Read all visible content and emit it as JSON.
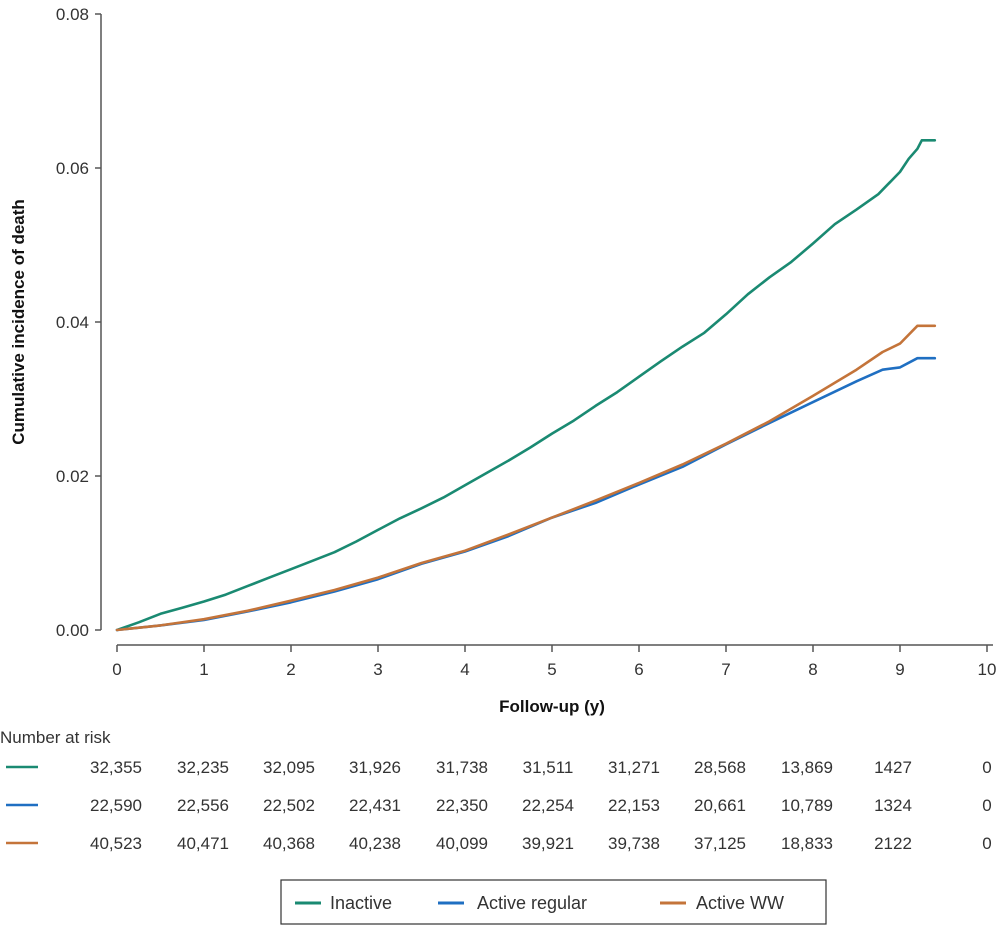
{
  "chart_data": {
    "type": "line",
    "title": "",
    "xlabel": "Follow-up (y)",
    "ylabel": "Cumulative incidence of death",
    "xlim": [
      0,
      10
    ],
    "ylim": [
      0,
      0.08
    ],
    "x_ticks": [
      "0",
      "1",
      "2",
      "3",
      "4",
      "5",
      "6",
      "7",
      "8",
      "9",
      "10"
    ],
    "y_ticks": [
      "0.00",
      "0.02",
      "0.04",
      "0.06",
      "0.08"
    ],
    "grid": false,
    "legend_position": "bottom",
    "series": [
      {
        "name": "Inactive",
        "color": "#1a8a72",
        "x": [
          0,
          0.25,
          0.5,
          0.75,
          1,
          1.25,
          1.5,
          1.75,
          2,
          2.25,
          2.5,
          2.75,
          3,
          3.25,
          3.5,
          3.75,
          4,
          4.25,
          4.5,
          4.75,
          5,
          5.25,
          5.5,
          5.75,
          6,
          6.25,
          6.5,
          6.75,
          7,
          7.25,
          7.5,
          7.75,
          8,
          8.25,
          8.5,
          8.75,
          9,
          9.1,
          9.2,
          9.25,
          9.4
        ],
        "y": [
          0,
          0.001,
          0.0021,
          0.0029,
          0.0037,
          0.0046,
          0.0057,
          0.0068,
          0.0079,
          0.009,
          0.0101,
          0.0115,
          0.013,
          0.0145,
          0.0158,
          0.0172,
          0.0188,
          0.0204,
          0.022,
          0.0237,
          0.0255,
          0.0272,
          0.0291,
          0.0309,
          0.0329,
          0.0349,
          0.0368,
          0.0386,
          0.041,
          0.0436,
          0.0458,
          0.0478,
          0.0502,
          0.0527,
          0.0546,
          0.0566,
          0.0595,
          0.0612,
          0.0625,
          0.0636,
          0.0636
        ]
      },
      {
        "name": "Active regular",
        "color": "#1f6fc2",
        "x": [
          0,
          0.5,
          1,
          1.5,
          2,
          2.5,
          3,
          3.5,
          4,
          4.5,
          5,
          5.5,
          6,
          6.5,
          7,
          7.5,
          8,
          8.5,
          8.8,
          9,
          9.2,
          9.4
        ],
        "y": [
          0,
          0.0006,
          0.0013,
          0.0024,
          0.0036,
          0.005,
          0.0066,
          0.0086,
          0.0102,
          0.0122,
          0.0146,
          0.0165,
          0.0189,
          0.0212,
          0.0241,
          0.0269,
          0.0296,
          0.0323,
          0.0338,
          0.0341,
          0.0353,
          0.0353
        ]
      },
      {
        "name": "Active WW",
        "color": "#c4743a",
        "x": [
          0,
          0.5,
          1,
          1.5,
          2,
          2.5,
          3,
          3.5,
          4,
          4.5,
          5,
          5.5,
          6,
          6.5,
          7,
          7.5,
          8,
          8.5,
          8.8,
          9,
          9.2,
          9.4
        ],
        "y": [
          0,
          0.0006,
          0.0014,
          0.0025,
          0.0038,
          0.0052,
          0.0068,
          0.0087,
          0.0103,
          0.0124,
          0.0146,
          0.0168,
          0.0191,
          0.0215,
          0.0242,
          0.0271,
          0.0304,
          0.0338,
          0.0361,
          0.0372,
          0.0395,
          0.0395
        ]
      }
    ]
  },
  "risk_table": {
    "title": "Number at risk",
    "rows": [
      {
        "color": "#1a8a72",
        "values": [
          "32,355",
          "32,235",
          "32,095",
          "31,926",
          "31,738",
          "31,511",
          "31,271",
          "28,568",
          "13,869",
          "1427",
          "0"
        ]
      },
      {
        "color": "#1f6fc2",
        "values": [
          "22,590",
          "22,556",
          "22,502",
          "22,431",
          "22,350",
          "22,254",
          "22,153",
          "20,661",
          "10,789",
          "1324",
          "0"
        ]
      },
      {
        "color": "#c4743a",
        "values": [
          "40,523",
          "40,471",
          "40,368",
          "40,238",
          "40,099",
          "39,921",
          "39,738",
          "37,125",
          "18,833",
          "2122",
          "0"
        ]
      }
    ]
  },
  "legend": {
    "items": [
      "Inactive",
      "Active regular",
      "Active WW"
    ]
  }
}
